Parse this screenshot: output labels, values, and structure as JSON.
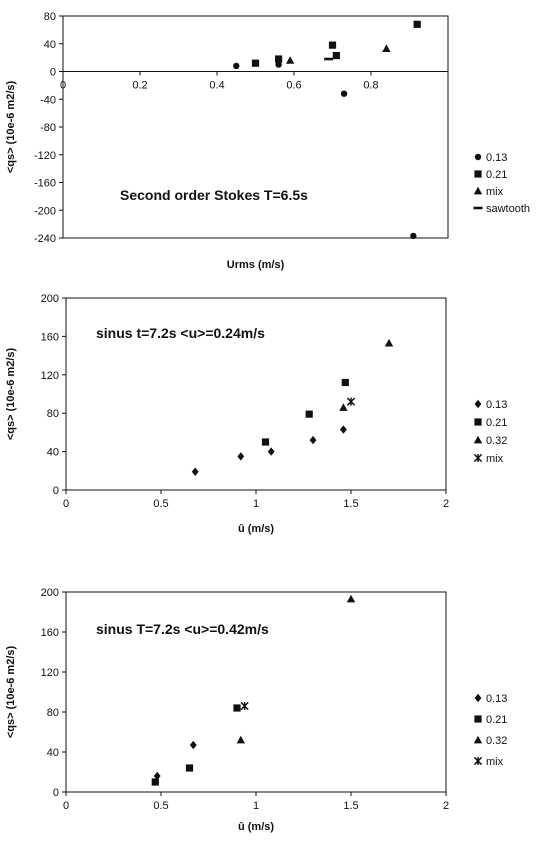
{
  "chart_data": [
    {
      "type": "scatter",
      "title": "",
      "annotation": "Second order Stokes T=6.5s",
      "xlabel": "Urms (m/s)",
      "ylabel": "<qs> (10e-6 m2/s)",
      "xlim": [
        0,
        1
      ],
      "ylim": [
        -240,
        80
      ],
      "x_ticks": [
        "0",
        "0.2",
        "0.4",
        "0.6",
        "0.8"
      ],
      "y_ticks": [
        "80",
        "40",
        "0",
        "-40",
        "-80",
        "-120",
        "-160",
        "-200",
        "-240"
      ],
      "x_tick_values": [
        0,
        0.2,
        0.4,
        0.6,
        0.8
      ],
      "y_tick_values": [
        80,
        40,
        0,
        -40,
        -80,
        -120,
        -160,
        -200,
        -240
      ],
      "legend_position": "right",
      "grid": false,
      "series": [
        {
          "name": "0.13",
          "marker": "circle",
          "points": [
            [
              0.45,
              8
            ],
            [
              0.56,
              10
            ],
            [
              0.73,
              -32
            ],
            [
              0.91,
              -237
            ]
          ]
        },
        {
          "name": "0.21",
          "marker": "square",
          "points": [
            [
              0.5,
              12
            ],
            [
              0.56,
              18
            ],
            [
              0.7,
              38
            ],
            [
              0.71,
              23
            ],
            [
              0.92,
              68
            ]
          ]
        },
        {
          "name": "mix",
          "marker": "triangle",
          "points": [
            [
              0.59,
              16
            ],
            [
              0.84,
              33
            ]
          ]
        },
        {
          "name": "sawtooth",
          "marker": "dash",
          "points": [
            [
              0.69,
              18
            ]
          ]
        }
      ]
    },
    {
      "type": "scatter",
      "title": "",
      "annotation": "sinus t=7.2s <u>=0.24m/s",
      "xlabel": "û (m/s)",
      "ylabel": "<qs> (10e-6 m2/s)",
      "xlim": [
        0,
        2
      ],
      "ylim": [
        0,
        200
      ],
      "x_ticks": [
        "0",
        "0.5",
        "1",
        "1.5",
        "2"
      ],
      "y_ticks": [
        "200",
        "160",
        "120",
        "80",
        "40",
        "0"
      ],
      "x_tick_values": [
        0,
        0.5,
        1,
        1.5,
        2
      ],
      "y_tick_values": [
        200,
        160,
        120,
        80,
        40,
        0
      ],
      "legend_position": "right",
      "grid": false,
      "series": [
        {
          "name": "0.13",
          "marker": "diamond",
          "points": [
            [
              0.68,
              19
            ],
            [
              0.92,
              35
            ],
            [
              1.08,
              40
            ],
            [
              1.3,
              52
            ],
            [
              1.46,
              63
            ]
          ]
        },
        {
          "name": "0.21",
          "marker": "square",
          "points": [
            [
              1.05,
              50
            ],
            [
              1.28,
              79
            ],
            [
              1.47,
              112
            ]
          ]
        },
        {
          "name": "0.32",
          "marker": "triangle",
          "points": [
            [
              1.46,
              86
            ],
            [
              1.7,
              153
            ]
          ]
        },
        {
          "name": "mix",
          "marker": "star",
          "points": [
            [
              1.5,
              92
            ]
          ]
        }
      ]
    },
    {
      "type": "scatter",
      "title": "",
      "annotation": "sinus T=7.2s <u>=0.42m/s",
      "xlabel": "û (m/s)",
      "ylabel": "<qs> (10e-6 m2/s)",
      "xlim": [
        0,
        2
      ],
      "ylim": [
        0,
        200
      ],
      "x_ticks": [
        "0",
        "0.5",
        "1",
        "1.5",
        "2"
      ],
      "y_ticks": [
        "200",
        "160",
        "120",
        "80",
        "40",
        "0"
      ],
      "x_tick_values": [
        0,
        0.5,
        1,
        1.5,
        2
      ],
      "y_tick_values": [
        200,
        160,
        120,
        80,
        40,
        0
      ],
      "legend_position": "right",
      "grid": false,
      "series": [
        {
          "name": "0.13",
          "marker": "diamond",
          "points": [
            [
              0.48,
              16
            ],
            [
              0.67,
              47
            ]
          ]
        },
        {
          "name": "0.21",
          "marker": "square",
          "points": [
            [
              0.47,
              10
            ],
            [
              0.65,
              24
            ],
            [
              0.9,
              84
            ]
          ]
        },
        {
          "name": "0.32",
          "marker": "triangle",
          "points": [
            [
              0.92,
              52
            ],
            [
              1.5,
              193
            ]
          ]
        },
        {
          "name": "mix",
          "marker": "star",
          "points": [
            [
              0.94,
              86
            ]
          ]
        }
      ]
    }
  ]
}
